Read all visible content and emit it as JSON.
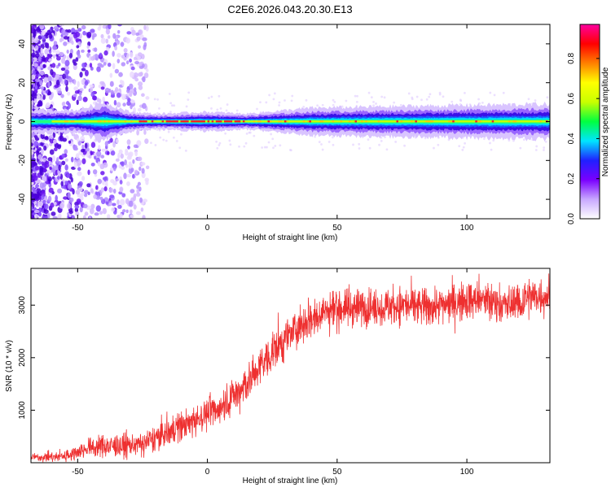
{
  "title": "C2E6.2026.043.20.30.E13",
  "chart_data": [
    {
      "type": "heatmap",
      "xlabel": "Height of straight line (km)",
      "ylabel": "Frequency (Hz)",
      "xlim": [
        -68,
        132
      ],
      "ylim": [
        -50,
        50
      ],
      "xticks": [
        -50,
        0,
        50,
        100
      ],
      "xtick_labels": [
        "-50",
        "0",
        "50",
        "100"
      ],
      "yticks": [
        -40,
        -20,
        0,
        20,
        40
      ],
      "ytick_labels": [
        "-40",
        "-20",
        "0",
        "20",
        "40"
      ],
      "colorbar": {
        "label": "Normalized spectral amplitude",
        "range": [
          0.0,
          0.97
        ],
        "ticks": [
          0.0,
          0.2,
          0.4,
          0.6,
          0.8
        ],
        "tick_labels": [
          "0.0",
          "0.2",
          "0.4",
          "0.6",
          "0.8"
        ],
        "colors": [
          "#ffffff",
          "#c8a8ff",
          "#7a00ff",
          "#2020ff",
          "#00e5ff",
          "#00ff40",
          "#c8ff00",
          "#ffff00",
          "#ff8000",
          "#ff0000",
          "#ff00a0"
        ]
      },
      "band": {
        "center_hz": 0,
        "halfwidth_hz": [
          {
            "x": -68,
            "w": 3
          },
          {
            "x": -60,
            "w": 3
          },
          {
            "x": -50,
            "w": 3
          },
          {
            "x": -40,
            "w": 5
          },
          {
            "x": -30,
            "w": 2.5
          },
          {
            "x": -20,
            "w": 2
          },
          {
            "x": 0,
            "w": 2.5
          },
          {
            "x": 15,
            "w": 2
          },
          {
            "x": 40,
            "w": 3.5
          },
          {
            "x": 80,
            "w": 4
          },
          {
            "x": 132,
            "w": 4.5
          }
        ]
      },
      "grid": false
    },
    {
      "type": "line",
      "xlabel": "Height of straight line (km)",
      "ylabel": "SNR (10 * v/v)",
      "xlim": [
        -68,
        132
      ],
      "ylim": [
        0,
        3700
      ],
      "xticks": [
        -50,
        0,
        50,
        100
      ],
      "xtick_labels": [
        "-50",
        "0",
        "50",
        "100"
      ],
      "yticks": [
        1000,
        2000,
        3000
      ],
      "ytick_labels": [
        "1000",
        "2000",
        "3000"
      ],
      "color": "#ee3030",
      "envelope": [
        {
          "x": -68,
          "y": 100
        },
        {
          "x": -55,
          "y": 120
        },
        {
          "x": -45,
          "y": 300
        },
        {
          "x": -35,
          "y": 320
        },
        {
          "x": -25,
          "y": 350
        },
        {
          "x": -15,
          "y": 600
        },
        {
          "x": -5,
          "y": 800
        },
        {
          "x": 5,
          "y": 1050
        },
        {
          "x": 15,
          "y": 1500
        },
        {
          "x": 25,
          "y": 2100
        },
        {
          "x": 35,
          "y": 2600
        },
        {
          "x": 45,
          "y": 2900
        },
        {
          "x": 55,
          "y": 2950
        },
        {
          "x": 65,
          "y": 2950
        },
        {
          "x": 75,
          "y": 3000
        },
        {
          "x": 85,
          "y": 2950
        },
        {
          "x": 95,
          "y": 3050
        },
        {
          "x": 105,
          "y": 3100
        },
        {
          "x": 115,
          "y": 3000
        },
        {
          "x": 125,
          "y": 3150
        },
        {
          "x": 132,
          "y": 3200
        }
      ],
      "noise_amplitude": [
        {
          "x": -68,
          "a": 60
        },
        {
          "x": -40,
          "a": 200
        },
        {
          "x": 0,
          "a": 300
        },
        {
          "x": 30,
          "a": 400
        },
        {
          "x": 60,
          "a": 350
        },
        {
          "x": 132,
          "a": 400
        }
      ],
      "grid": false
    }
  ]
}
